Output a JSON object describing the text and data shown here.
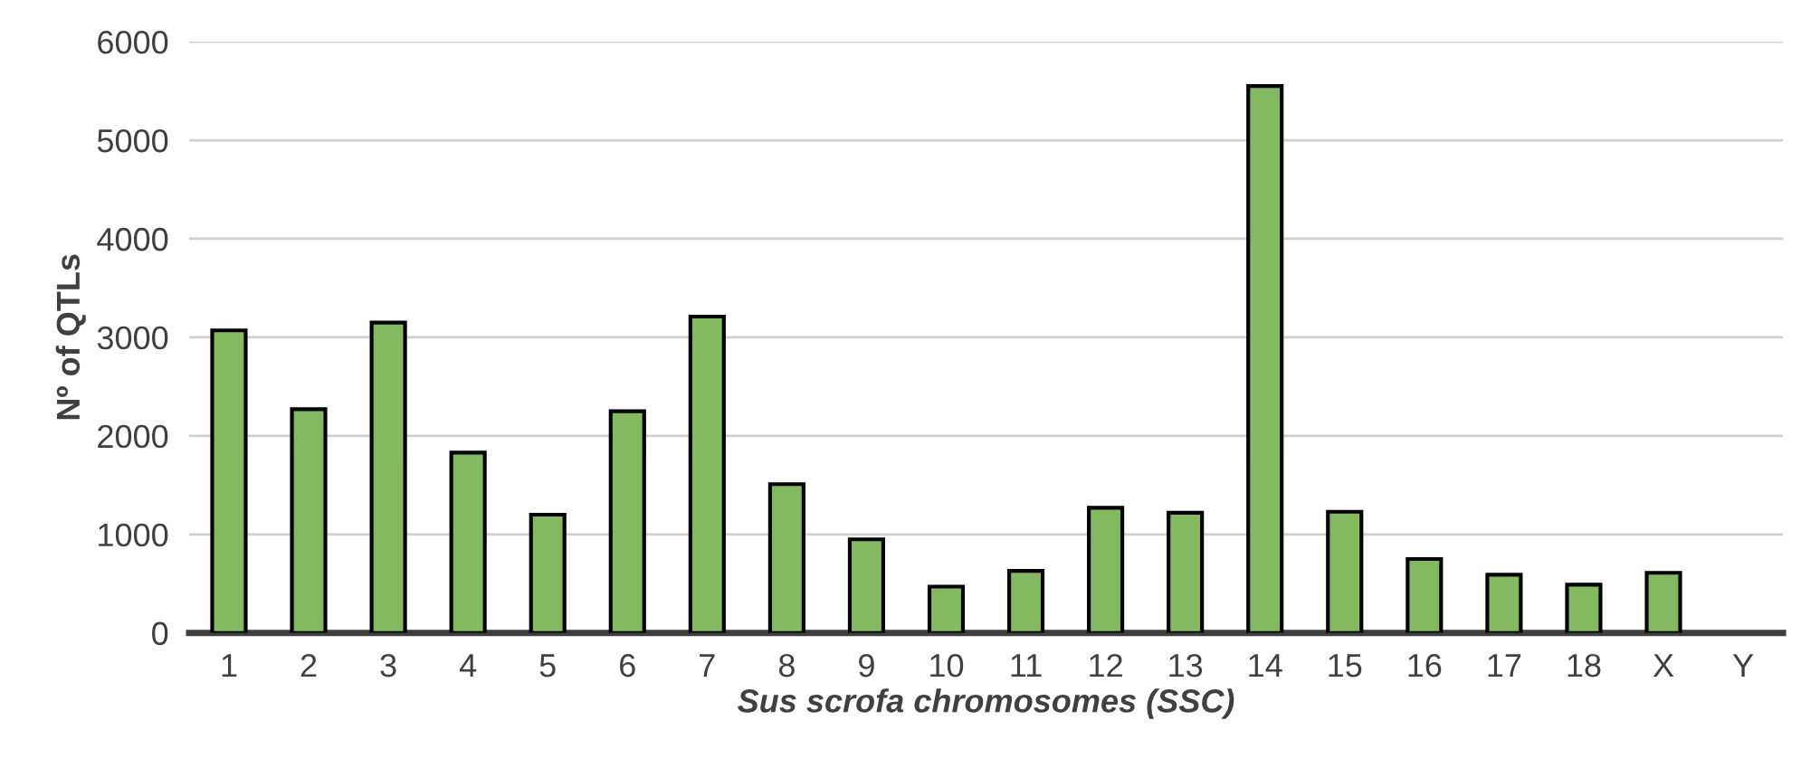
{
  "chart_data": {
    "type": "bar",
    "categories": [
      "1",
      "2",
      "3",
      "4",
      "5",
      "6",
      "7",
      "8",
      "9",
      "10",
      "11",
      "12",
      "13",
      "14",
      "15",
      "16",
      "17",
      "18",
      "X",
      "Y"
    ],
    "values": [
      3070,
      2270,
      3150,
      1830,
      1200,
      2250,
      3210,
      1510,
      950,
      470,
      630,
      1270,
      1220,
      5550,
      1230,
      750,
      590,
      490,
      610,
      null
    ],
    "color": "#84b962",
    "xlabel": "Sus scrofa chromosomes (SSC)",
    "ylabel": "Nº of QTLs",
    "ylim": [
      0,
      6000
    ],
    "yticks": [
      0,
      1000,
      2000,
      3000,
      4000,
      5000,
      6000
    ],
    "grid": "y"
  }
}
